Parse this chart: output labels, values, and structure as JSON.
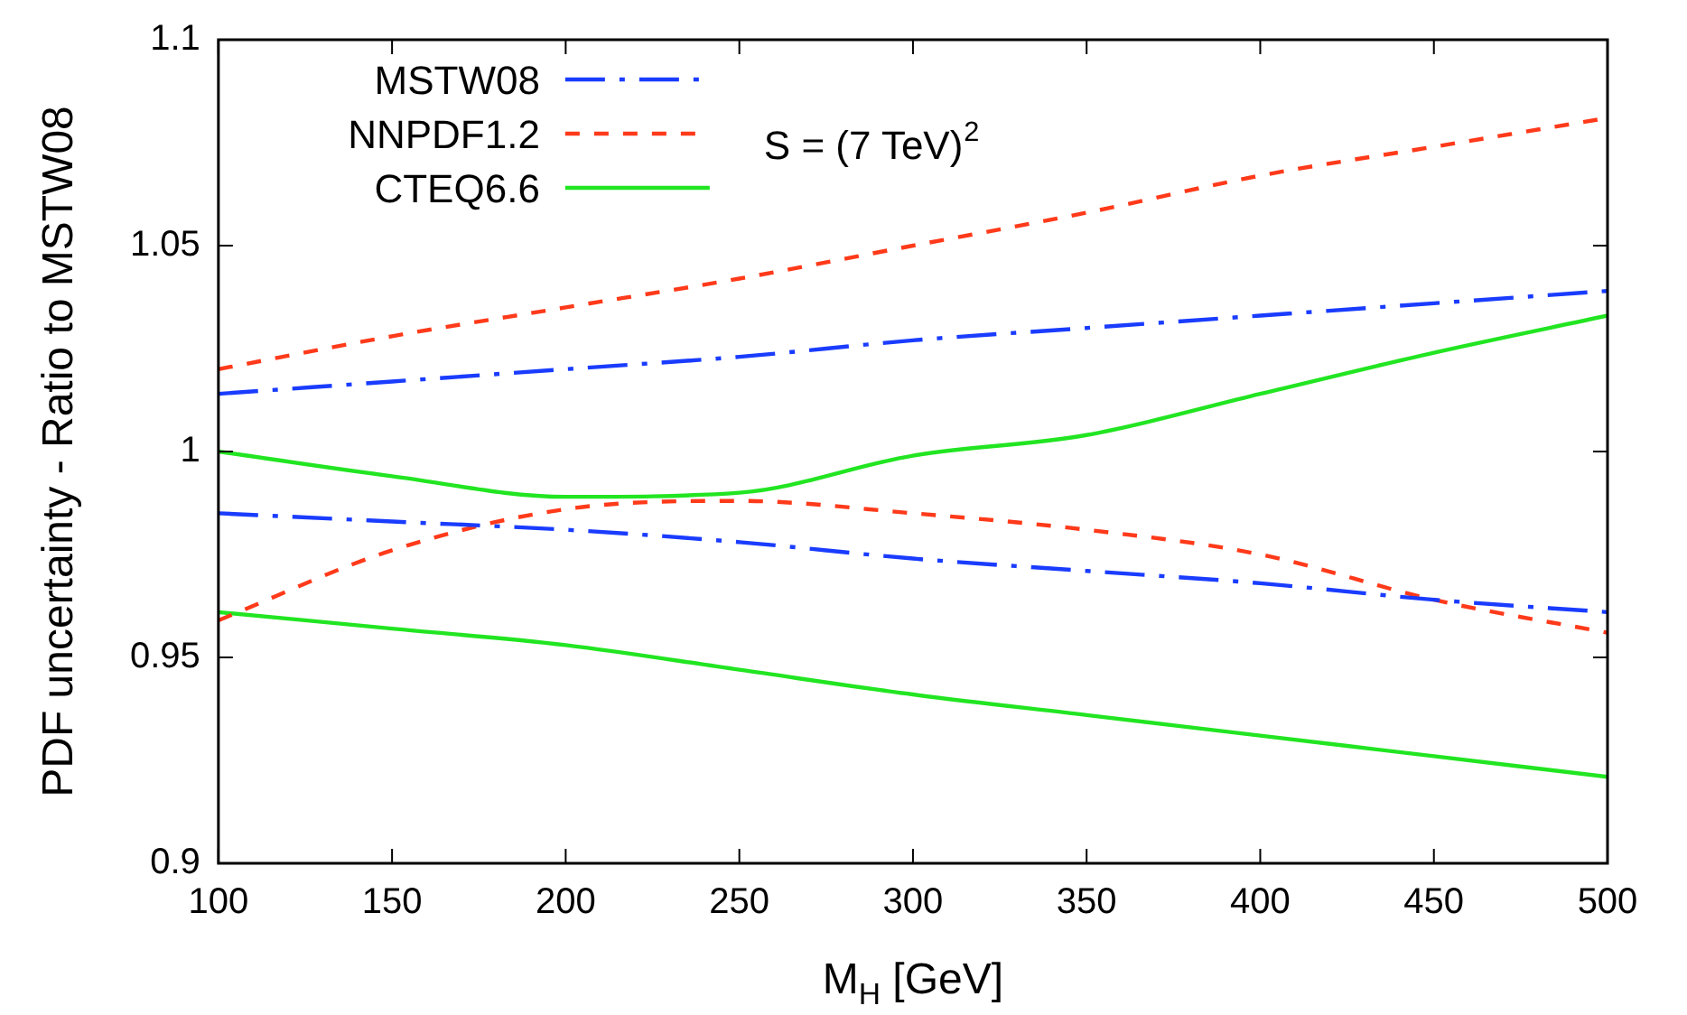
{
  "chart_data": {
    "type": "line",
    "xlabel": "M$_{H}$ [GeV]",
    "ylabel": "PDF uncertainty - Ratio to MSTW08",
    "annotations": [
      "S = (7 TeV)$^{2}$"
    ],
    "x": [
      100,
      150,
      200,
      250,
      300,
      350,
      400,
      450,
      500
    ],
    "xlim": [
      100,
      500
    ],
    "xticks": [
      100,
      150,
      200,
      250,
      300,
      350,
      400,
      450,
      500
    ],
    "ylim": [
      0.9,
      1.1
    ],
    "yticks": [
      0.9,
      0.95,
      1,
      1.05,
      1.1
    ],
    "grid": false,
    "legend": "top left",
    "marker": "none",
    "series": [
      {
        "name": "MSTW08",
        "color": "#1a3cff",
        "line_style": "dashdot",
        "values": [
          1.014,
          1.017,
          1.02,
          1.023,
          1.027,
          1.03,
          1.033,
          1.036,
          1.039
        ]
      },
      {
        "name": "NNPDF1.2",
        "color": "#ff3a1a",
        "line_style": "dashed",
        "values": [
          1.02,
          1.028,
          1.035,
          1.042,
          1.05,
          1.058,
          1.067,
          1.074,
          1.081
        ]
      },
      {
        "name": "CTEQ6.6",
        "color": "#22e522",
        "line_style": "solid",
        "values": [
          1.0,
          0.994,
          0.989,
          0.99,
          0.999,
          1.004,
          1.014,
          1.024,
          1.033
        ]
      },
      {
        "color": "#1a3cff",
        "line_style": "dashdot",
        "values": [
          0.985,
          0.983,
          0.981,
          0.978,
          0.974,
          0.971,
          0.968,
          0.964,
          0.961
        ]
      },
      {
        "color": "#ff3a1a",
        "line_style": "dashed",
        "values": [
          0.959,
          0.976,
          0.986,
          0.988,
          0.985,
          0.981,
          0.975,
          0.964,
          0.956
        ]
      },
      {
        "color": "#22e522",
        "line_style": "solid",
        "values": [
          0.961,
          0.957,
          0.953,
          0.947,
          0.941,
          0.936,
          0.931,
          0.926,
          0.921
        ]
      }
    ]
  }
}
